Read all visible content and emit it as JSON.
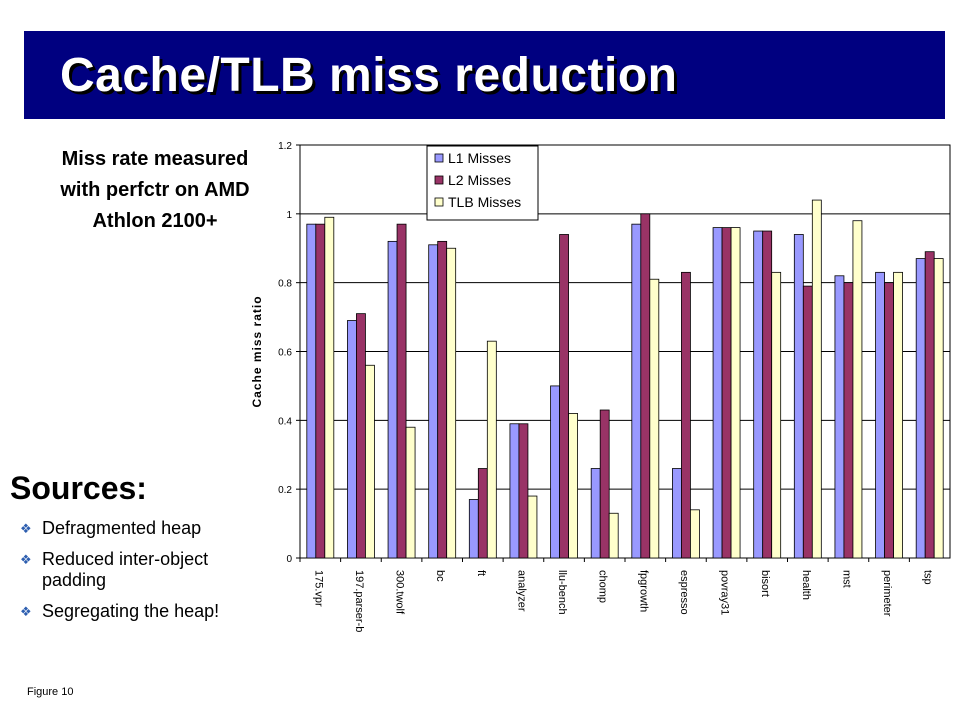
{
  "slide": {
    "title": "Cache/TLB miss reduction",
    "miss_line1": "Miss rate measured",
    "miss_line2": "with perfctr on AMD",
    "miss_line3": "Athlon 2100+",
    "sources_heading": "Sources:",
    "bullets": [
      "Defragmented heap",
      "Reduced inter-object padding",
      "Segregating the heap!"
    ],
    "figure_label": "Figure 10"
  },
  "colors": {
    "title_bg": "#000080",
    "l1": "#9999ff",
    "l2": "#993366",
    "tlb": "#ffffcc",
    "bullet": "#2e5fb0"
  },
  "chart_data": {
    "type": "bar",
    "ylabel": "Cache miss ratio",
    "xlabel": "",
    "ylim": [
      0,
      1.2
    ],
    "yticks": [
      "0",
      "0.2",
      "0.4",
      "0.6",
      "0.8",
      "1",
      "1.2"
    ],
    "grid": true,
    "legend_position": "top-right",
    "categories": [
      "175.vpr",
      "197.parser-b",
      "300.twolf",
      "bc",
      "ft",
      "analyzer",
      "llu-bench",
      "chomp",
      "fpgrowth",
      "espresso",
      "povray31",
      "bisort",
      "health",
      "mst",
      "perimeter",
      "tsp"
    ],
    "series": [
      {
        "name": "L1 Misses",
        "values": [
          0.97,
          0.69,
          0.92,
          0.91,
          0.17,
          0.39,
          0.5,
          0.26,
          0.97,
          0.26,
          0.96,
          0.95,
          0.94,
          0.82,
          0.83,
          0.87
        ]
      },
      {
        "name": "L2 Misses",
        "values": [
          0.97,
          0.71,
          0.97,
          0.92,
          0.26,
          0.39,
          0.94,
          0.43,
          1.0,
          0.83,
          0.96,
          0.95,
          0.79,
          0.8,
          0.8,
          0.89
        ]
      },
      {
        "name": "TLB Misses",
        "values": [
          0.99,
          0.56,
          0.38,
          0.9,
          0.63,
          0.18,
          0.42,
          0.13,
          0.81,
          0.14,
          0.96,
          0.83,
          1.04,
          0.98,
          0.83,
          0.87
        ]
      }
    ]
  }
}
